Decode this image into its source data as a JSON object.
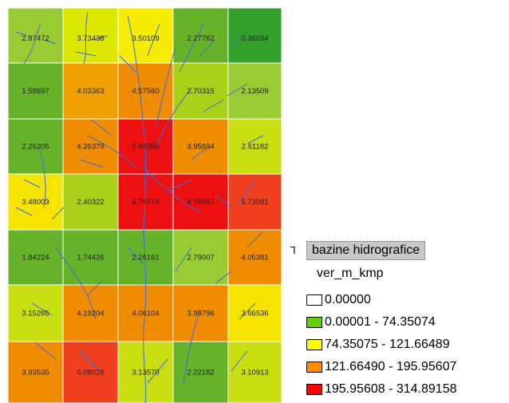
{
  "map": {
    "rows": [
      [
        {
          "v": "2.87472",
          "c": "#99cc33"
        },
        {
          "v": "3.73438",
          "c": "#dde800"
        },
        {
          "v": "3.50109",
          "c": "#f5ec00"
        },
        {
          "v": "2.27762",
          "c": "#66b32a"
        },
        {
          "v": "0.36034",
          "c": "#33a02c"
        }
      ],
      [
        {
          "v": "1.58697",
          "c": "#66b32a"
        },
        {
          "v": "4.03363",
          "c": "#f0a000"
        },
        {
          "v": "4.57560",
          "c": "#f08c00"
        },
        {
          "v": "2.70315",
          "c": "#aad11a"
        },
        {
          "v": "2.13509",
          "c": "#99cc33"
        }
      ],
      [
        {
          "v": "2.26205",
          "c": "#66b32a"
        },
        {
          "v": "4.26379",
          "c": "#f08c00"
        },
        {
          "v": "5.69366",
          "c": "#ee1010"
        },
        {
          "v": "3.95694",
          "c": "#f08c00"
        },
        {
          "v": "2.61182",
          "c": "#c8de10"
        }
      ],
      [
        {
          "v": "3.48003",
          "c": "#f5e400"
        },
        {
          "v": "2.40322",
          "c": "#aad11a"
        },
        {
          "v": "6.76774",
          "c": "#ee1010"
        },
        {
          "v": "8.18657",
          "c": "#ee1010"
        },
        {
          "v": "5.73081",
          "c": "#f04020"
        }
      ],
      [
        {
          "v": "1.84224",
          "c": "#66b32a"
        },
        {
          "v": "1.74426",
          "c": "#66b32a"
        },
        {
          "v": "2.26161",
          "c": "#66b32a"
        },
        {
          "v": "2.79007",
          "c": "#99cc33"
        },
        {
          "v": "4.05381",
          "c": "#f08c00"
        }
      ],
      [
        {
          "v": "3.15265",
          "c": "#c8de10"
        },
        {
          "v": "4.19204",
          "c": "#f08c00"
        },
        {
          "v": "4.06104",
          "c": "#f08c00"
        },
        {
          "v": "3.99796",
          "c": "#f08c00"
        },
        {
          "v": "3.66536",
          "c": "#f5e400"
        }
      ],
      [
        {
          "v": "3.93535",
          "c": "#f08c00"
        },
        {
          "v": "5.08028",
          "c": "#f04020"
        },
        {
          "v": "3.13570",
          "c": "#c8de10"
        },
        {
          "v": "2.22182",
          "c": "#66b32a"
        },
        {
          "v": "3.10913",
          "c": "#c8de10"
        }
      ]
    ],
    "stream_color": "#3a6ee0"
  },
  "legend": {
    "toggle_icon": "ꟷ",
    "layer_name": "bazine hidrografice",
    "field_name": "ver_m_kmp",
    "classes": [
      {
        "label": "0.00000",
        "color": "#ffffff"
      },
      {
        "label": "0.00001 - 74.35074",
        "color": "#66cc00"
      },
      {
        "label": "74.35075 - 121.66489",
        "color": "#ffff00"
      },
      {
        "label": "121.66490 - 195.95607",
        "color": "#ff8c00"
      },
      {
        "label": "195.95608 - 314.89158",
        "color": "#ff0000"
      }
    ]
  }
}
